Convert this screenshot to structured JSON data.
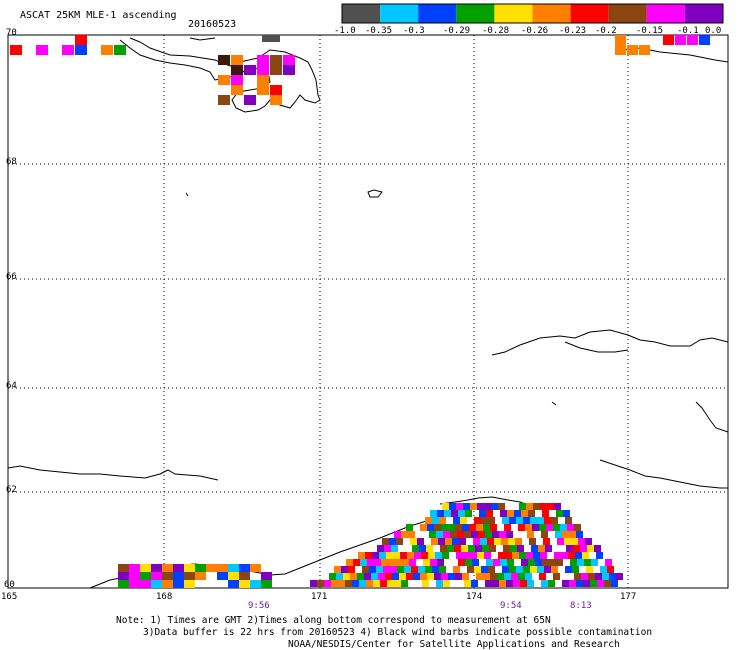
{
  "header": {
    "title": "ASCAT 25KM MLE-1 ascending",
    "date": "20160523"
  },
  "colorbar": {
    "colors": [
      "#505050",
      "#00c8ff",
      "#0040ff",
      "#00a000",
      "#ffe000",
      "#ff8000",
      "#ff0000",
      "#8b4513",
      "#ff00ff",
      "#8000c0"
    ],
    "labels": [
      "-1.0",
      "-0.35",
      "-0.3",
      "-0.29",
      "-0.28",
      "-0.26",
      "-0.23",
      "-0.2",
      "-0.15",
      "-0.1",
      "0.0"
    ]
  },
  "axes": {
    "lat_labels": [
      "70",
      "68",
      "66",
      "64",
      "62",
      "60"
    ],
    "lon_labels": [
      "165",
      "168",
      "171",
      "174",
      "177"
    ]
  },
  "pass_times": [
    "9:56",
    "9:54",
    "8:13"
  ],
  "notes": {
    "line1": "Note: 1) Times are GMT 2)Times along bottom correspond to measurement at 65N",
    "line2": "3)Data buffer is 22 hrs from 20160523 4) Black wind barbs indicate possible contamination",
    "line3": "NOAA/NESDIS/Center for Satellite Applications and Research"
  }
}
